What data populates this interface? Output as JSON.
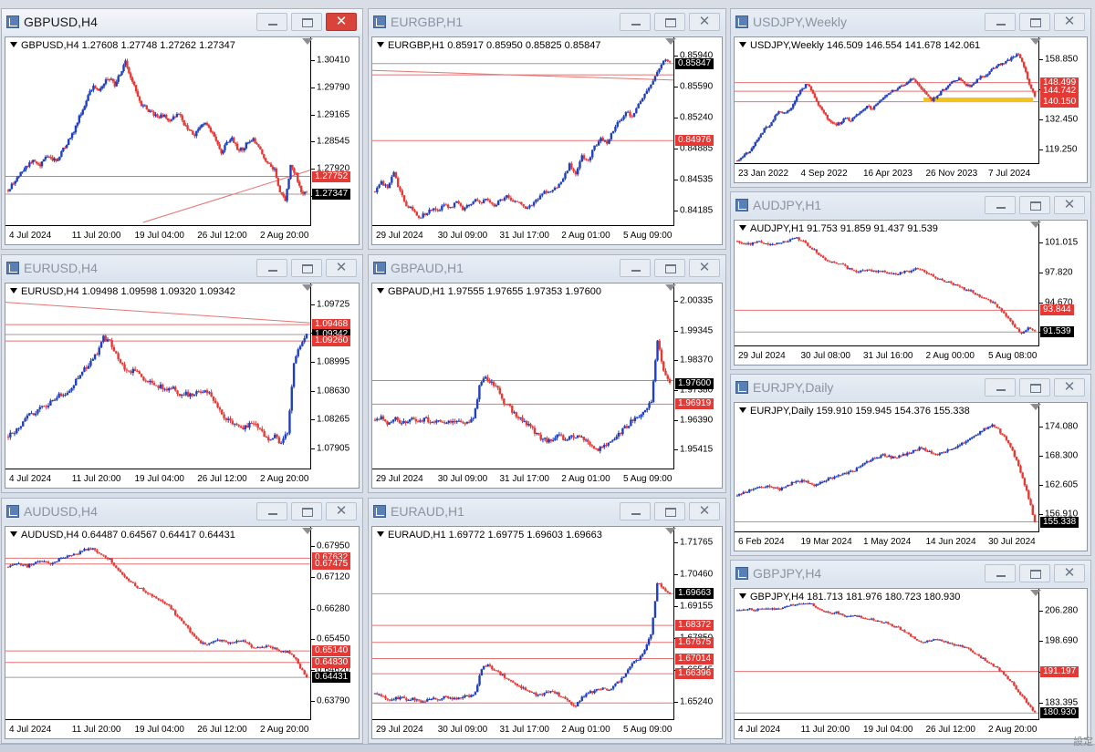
{
  "windows": [
    {
      "id": "gbpusd",
      "title": "GBPUSD,H4",
      "active": true,
      "header": "GBPUSD,H4  1.27608 1.27748 1.27262 1.27347",
      "yticks": [
        "1.30410",
        "1.29790",
        "1.29165",
        "1.28545",
        "1.27920",
        "1.27300"
      ],
      "yrange": [
        1.267,
        1.3068
      ],
      "xticks": [
        "4 Jul 2024",
        "11 Jul 20:00",
        "19 Jul 04:00",
        "26 Jul 12:00",
        "2 Aug 20:00"
      ],
      "price_tags": [
        {
          "label": "1.27752",
          "value": 1.27752,
          "color": "red"
        },
        {
          "label": "1.27347",
          "value": 1.27347,
          "color": "black"
        }
      ],
      "hlines": [
        {
          "value": 1.27752,
          "color": "#e57373"
        },
        {
          "value": 1.27347,
          "color": "#9e9e9e"
        }
      ],
      "trend": [
        [
          0.45,
          1.267
        ],
        [
          1.0,
          1.279
        ]
      ],
      "series": [
        1.2744,
        1.276,
        1.2778,
        1.279,
        1.2805,
        1.2812,
        1.28,
        1.282,
        1.2815,
        1.281,
        1.283,
        1.285,
        1.287,
        1.29,
        1.293,
        1.296,
        1.298,
        1.2975,
        1.299,
        1.3,
        1.2985,
        1.301,
        1.304,
        1.3,
        1.297,
        1.294,
        1.293,
        1.292,
        1.291,
        1.2915,
        1.2905,
        1.291,
        1.292,
        1.2895,
        1.288,
        1.287,
        1.289,
        1.29,
        1.288,
        1.286,
        1.283,
        1.285,
        1.286,
        1.284,
        1.2835,
        1.2855,
        1.286,
        1.284,
        1.282,
        1.28,
        1.279,
        1.274,
        1.272,
        1.28,
        1.278,
        1.274,
        1.2735
      ],
      "volatility": 0.0009
    },
    {
      "id": "eurgbp",
      "title": "EURGBP,H1",
      "active": false,
      "header": "EURGBP,H1  0.85917 0.85950 0.85825 0.85847",
      "yticks": [
        "0.85940",
        "0.85590",
        "0.85240",
        "0.84885",
        "0.84535",
        "0.84185"
      ],
      "yrange": [
        0.8405,
        0.8602
      ],
      "xticks": [
        "29 Jul 2024",
        "30 Jul 09:00",
        "31 Jul 17:00",
        "2 Aug 01:00",
        "5 Aug 09:00"
      ],
      "price_tags": [
        {
          "label": "0.85847",
          "value": 0.85847,
          "color": "black"
        },
        {
          "label": "0.84976",
          "value": 0.84976,
          "color": "red"
        }
      ],
      "hlines": [
        {
          "value": 0.85847,
          "color": "#9e9e9e"
        },
        {
          "value": 0.8572,
          "color": "#e57373"
        },
        {
          "value": 0.84976,
          "color": "#e57373"
        }
      ],
      "trend": [
        [
          0.0,
          0.8577
        ],
        [
          1.0,
          0.8566
        ]
      ],
      "series": [
        0.844,
        0.845,
        0.8445,
        0.846,
        0.844,
        0.8425,
        0.842,
        0.841,
        0.8415,
        0.842,
        0.8418,
        0.8425,
        0.8422,
        0.8428,
        0.842,
        0.8425,
        0.843,
        0.8428,
        0.8432,
        0.8425,
        0.843,
        0.8435,
        0.843,
        0.8428,
        0.842,
        0.8425,
        0.8432,
        0.844,
        0.8438,
        0.8445,
        0.8455,
        0.847,
        0.846,
        0.848,
        0.8475,
        0.849,
        0.85,
        0.8495,
        0.851,
        0.852,
        0.853,
        0.8525,
        0.854,
        0.855,
        0.856,
        0.8575,
        0.859,
        0.8585
      ],
      "volatility": 0.0004
    },
    {
      "id": "usdjpy",
      "title": "USDJPY,Weekly",
      "active": false,
      "header": "USDJPY,Weekly  146.509 146.554 141.678 142.061",
      "yticks": [
        "158.850",
        "145.650",
        "132.450",
        "119.250"
      ],
      "yrange": [
        114.5,
        163.5
      ],
      "xticks": [
        "23 Jan 2022",
        "4 Sep 2022",
        "16 Apr 2023",
        "26 Nov 2023",
        "7 Jul 2024"
      ],
      "price_tags": [
        {
          "label": "148.499",
          "value": 148.499,
          "color": "red"
        },
        {
          "label": "144.742",
          "value": 144.742,
          "color": "red"
        },
        {
          "label": "140.150",
          "value": 140.15,
          "color": "red"
        }
      ],
      "hlines": [
        {
          "value": 148.499,
          "color": "#e57373"
        },
        {
          "value": 144.742,
          "color": "#e57373"
        },
        {
          "value": 140.15,
          "color": "#e57373"
        }
      ],
      "highlight": {
        "from": 0.62,
        "to": 0.98,
        "value": 141.0,
        "color": "#f2c318"
      },
      "trend": null,
      "series": [
        114.5,
        116,
        118,
        121,
        124,
        128,
        130,
        134,
        136,
        135,
        138,
        142,
        146,
        148,
        144,
        139,
        135,
        132,
        130,
        131,
        133,
        132,
        134,
        136,
        138,
        137,
        140,
        142,
        144,
        145,
        147,
        148,
        150,
        149,
        146,
        143,
        141,
        143,
        145,
        147,
        149,
        150,
        148,
        147,
        149,
        151,
        152,
        154,
        156,
        157,
        158,
        160,
        161,
        155,
        148,
        142
      ],
      "volatility": 1.2
    },
    {
      "id": "eurusd",
      "title": "EURUSD,H4",
      "active": false,
      "header": "EURUSD,H4  1.09498 1.09598 1.09320 1.09342",
      "yticks": [
        "1.09725",
        "1.09365",
        "1.08995",
        "1.08630",
        "1.08265",
        "1.07905"
      ],
      "yrange": [
        1.0768,
        1.0985
      ],
      "xticks": [
        "4 Jul 2024",
        "11 Jul 20:00",
        "19 Jul 04:00",
        "26 Jul 12:00",
        "2 Aug 20:00"
      ],
      "price_tags": [
        {
          "label": "1.09468",
          "value": 1.09468,
          "color": "red"
        },
        {
          "label": "1.09342",
          "value": 1.09342,
          "color": "black"
        },
        {
          "label": "1.09260",
          "value": 1.0926,
          "color": "red"
        }
      ],
      "hlines": [
        {
          "value": 1.09468,
          "color": "#e57373"
        },
        {
          "value": 1.09342,
          "color": "#9e9e9e"
        },
        {
          "value": 1.0926,
          "color": "#e57373"
        }
      ],
      "trend": [
        [
          0.0,
          1.0975
        ],
        [
          1.0,
          1.0949
        ]
      ],
      "series": [
        1.0805,
        1.0812,
        1.082,
        1.083,
        1.0835,
        1.084,
        1.0845,
        1.085,
        1.086,
        1.0858,
        1.0865,
        1.088,
        1.089,
        1.09,
        1.091,
        1.093,
        1.0925,
        1.091,
        1.0895,
        1.0885,
        1.089,
        1.088,
        1.0875,
        1.087,
        1.0868,
        1.0862,
        1.087,
        1.0858,
        1.086,
        1.0855,
        1.0862,
        1.0865,
        1.0855,
        1.084,
        1.083,
        1.0825,
        1.082,
        1.0815,
        1.082,
        1.0818,
        1.081,
        1.08,
        1.0805,
        1.0795,
        1.081,
        1.09,
        1.092,
        1.0934
      ],
      "volatility": 0.0006
    },
    {
      "id": "gbpaud",
      "title": "GBPAUD,H1",
      "active": false,
      "header": "GBPAUD,H1  1.97555 1.97655 1.97353 1.97600",
      "yticks": [
        "2.00335",
        "1.99345",
        "1.98370",
        "1.97380",
        "1.96390",
        "1.95415"
      ],
      "yrange": [
        1.9488,
        2.0055
      ],
      "xticks": [
        "29 Jul 2024",
        "30 Jul 09:00",
        "31 Jul 17:00",
        "2 Aug 01:00",
        "5 Aug 09:00"
      ],
      "price_tags": [
        {
          "label": "1.97600",
          "value": 1.976,
          "color": "black"
        },
        {
          "label": "1.96919",
          "value": 1.96919,
          "color": "red"
        }
      ],
      "hlines": [
        {
          "value": 1.977,
          "color": "#e57373"
        },
        {
          "value": 1.96919,
          "color": "#e57373"
        }
      ],
      "trend": null,
      "series": [
        1.964,
        1.965,
        1.963,
        1.9645,
        1.9635,
        1.9625,
        1.964,
        1.963,
        1.9645,
        1.9635,
        1.964,
        1.963,
        1.9635,
        1.964,
        1.9635,
        1.963,
        1.964,
        1.975,
        1.978,
        1.976,
        1.974,
        1.97,
        1.968,
        1.965,
        1.964,
        1.962,
        1.96,
        1.958,
        1.957,
        1.958,
        1.959,
        1.9575,
        1.9585,
        1.959,
        1.958,
        1.956,
        1.954,
        1.955,
        1.956,
        1.958,
        1.96,
        1.962,
        1.964,
        1.965,
        1.967,
        1.97,
        1.99,
        1.98,
        1.976
      ],
      "volatility": 0.0015
    },
    {
      "id": "audjpy",
      "title": "AUDJPY,H1",
      "active": false,
      "header": "AUDJPY,H1  91.753 91.859 91.437 91.539",
      "yticks": [
        "101.015",
        "97.820",
        "94.670",
        "91.520"
      ],
      "yrange": [
        90.4,
        102.2
      ],
      "xticks": [
        "29 Jul 2024",
        "30 Jul 08:00",
        "31 Jul 16:00",
        "2 Aug 00:00",
        "5 Aug 08:00"
      ],
      "price_tags": [
        {
          "label": "93.844",
          "value": 93.844,
          "color": "red"
        },
        {
          "label": "91.539",
          "value": 91.539,
          "color": "black"
        }
      ],
      "hlines": [
        {
          "value": 93.844,
          "color": "#e57373"
        },
        {
          "value": 91.539,
          "color": "#9e9e9e"
        }
      ],
      "trend": null,
      "series": [
        101.2,
        101.0,
        100.9,
        101.1,
        101.0,
        100.8,
        100.9,
        101.1,
        101.3,
        101.5,
        101.1,
        100.6,
        100.0,
        99.4,
        99.0,
        98.8,
        98.6,
        98.2,
        97.9,
        98.0,
        98.1,
        97.9,
        98.0,
        97.8,
        97.7,
        97.9,
        98.0,
        98.2,
        98.1,
        97.7,
        97.2,
        97.0,
        96.8,
        96.5,
        96.2,
        96.0,
        95.6,
        95.2,
        94.9,
        94.5,
        93.8,
        93.0,
        92.0,
        91.5,
        91.9,
        91.6
      ],
      "volatility": 0.25
    },
    {
      "id": "audusd",
      "title": "AUDUSD,H4",
      "active": false,
      "header": "AUDUSD,H4  0.64487 0.64567 0.64417 0.64431",
      "yticks": [
        "0.67950",
        "0.67120",
        "0.66280",
        "0.65450",
        "0.64620",
        "0.63790"
      ],
      "yrange": [
        0.6338,
        0.6818
      ],
      "xticks": [
        "4 Jul 2024",
        "11 Jul 20:00",
        "19 Jul 04:00",
        "26 Jul 12:00",
        "2 Aug 20:00"
      ],
      "price_tags": [
        {
          "label": "0.67632",
          "value": 0.67632,
          "color": "red"
        },
        {
          "label": "0.67475",
          "value": 0.67475,
          "color": "red"
        },
        {
          "label": "0.65140",
          "value": 0.6514,
          "color": "red"
        },
        {
          "label": "0.64830",
          "value": 0.6483,
          "color": "red"
        },
        {
          "label": "0.64431",
          "value": 0.64431,
          "color": "black"
        }
      ],
      "hlines": [
        {
          "value": 0.67632,
          "color": "#e57373"
        },
        {
          "value": 0.67475,
          "color": "#e57373"
        },
        {
          "value": 0.6514,
          "color": "#e57373"
        },
        {
          "value": 0.6483,
          "color": "#e57373"
        },
        {
          "value": 0.64431,
          "color": "#9e9e9e"
        }
      ],
      "trend": null,
      "series": [
        0.674,
        0.6745,
        0.6748,
        0.6742,
        0.675,
        0.6755,
        0.6752,
        0.6748,
        0.676,
        0.6765,
        0.677,
        0.6775,
        0.6785,
        0.679,
        0.678,
        0.6772,
        0.676,
        0.674,
        0.672,
        0.67,
        0.669,
        0.668,
        0.667,
        0.666,
        0.665,
        0.664,
        0.662,
        0.66,
        0.658,
        0.656,
        0.654,
        0.653,
        0.654,
        0.6545,
        0.654,
        0.6535,
        0.654,
        0.6542,
        0.653,
        0.652,
        0.6525,
        0.653,
        0.652,
        0.651,
        0.6515,
        0.65,
        0.647,
        0.6443
      ],
      "volatility": 0.0007
    },
    {
      "id": "euraud",
      "title": "EURAUD,H1",
      "active": false,
      "header": "EURAUD,H1  1.69772 1.69775 1.69603 1.69663",
      "yticks": [
        "1.71765",
        "1.70460",
        "1.69155",
        "1.67850",
        "1.66545",
        "1.65240"
      ],
      "yrange": [
        1.6465,
        1.7195
      ],
      "xticks": [
        "29 Jul 2024",
        "30 Jul 09:00",
        "31 Jul 17:00",
        "2 Aug 01:00",
        "5 Aug 09:00"
      ],
      "price_tags": [
        {
          "label": "1.69663",
          "value": 1.69663,
          "color": "black"
        },
        {
          "label": "1.68372",
          "value": 1.68372,
          "color": "red"
        },
        {
          "label": "1.67675",
          "value": 1.67675,
          "color": "red"
        },
        {
          "label": "1.67014",
          "value": 1.67014,
          "color": "red"
        },
        {
          "label": "1.66396",
          "value": 1.66396,
          "color": "red"
        }
      ],
      "hlines": [
        {
          "value": 1.69663,
          "color": "#9e9e9e"
        },
        {
          "value": 1.68372,
          "color": "#e57373"
        },
        {
          "value": 1.67675,
          "color": "#e57373"
        },
        {
          "value": 1.67014,
          "color": "#e57373"
        },
        {
          "value": 1.66396,
          "color": "#e57373"
        },
        {
          "value": 1.652,
          "color": "#e57373"
        }
      ],
      "trend": null,
      "series": [
        1.656,
        1.655,
        1.654,
        1.6535,
        1.6545,
        1.653,
        1.654,
        1.6525,
        1.653,
        1.654,
        1.6535,
        1.6545,
        1.654,
        1.6535,
        1.6545,
        1.655,
        1.656,
        1.666,
        1.668,
        1.665,
        1.664,
        1.662,
        1.66,
        1.659,
        1.657,
        1.656,
        1.655,
        1.656,
        1.657,
        1.656,
        1.654,
        1.652,
        1.651,
        1.654,
        1.656,
        1.657,
        1.658,
        1.657,
        1.659,
        1.661,
        1.664,
        1.668,
        1.67,
        1.674,
        1.68,
        1.701,
        1.699,
        1.6966
      ],
      "volatility": 0.0012
    },
    {
      "id": "eurjpy",
      "title": "EURJPY,Daily",
      "active": false,
      "header": "EURJPY,Daily  159.910 159.945 154.376 155.338",
      "yticks": [
        "174.080",
        "168.300",
        "162.605",
        "156.910"
      ],
      "yrange": [
        154.0,
        176.6
      ],
      "xticks": [
        "6 Feb 2024",
        "19 Mar 2024",
        "1 May 2024",
        "14 Jun 2024",
        "30 Jul 2024"
      ],
      "price_tags": [
        {
          "label": "155.338",
          "value": 155.338,
          "color": "black"
        }
      ],
      "hlines": [
        {
          "value": 155.338,
          "color": "#9e9e9e"
        }
      ],
      "trend": null,
      "series": [
        160.5,
        161.0,
        161.5,
        161.8,
        162.2,
        162.5,
        162.0,
        161.8,
        162.4,
        163.0,
        163.2,
        163.5,
        163.0,
        162.5,
        163.2,
        163.8,
        164.0,
        164.5,
        165.0,
        165.2,
        166.0,
        166.8,
        167.5,
        168.0,
        168.5,
        168.2,
        167.8,
        168.4,
        168.8,
        169.2,
        169.8,
        169.5,
        168.9,
        168.5,
        169.0,
        169.6,
        170.0,
        170.8,
        171.5,
        172.3,
        173.0,
        173.8,
        174.5,
        173.5,
        172.0,
        170.0,
        167.5,
        164.0,
        160.0,
        155.3
      ],
      "volatility": 0.5
    },
    {
      "id": "gbpjpy",
      "title": "GBPJPY,H4",
      "active": false,
      "header": "GBPJPY,H4  181.713 181.976 180.723 180.930",
      "yticks": [
        "206.280",
        "198.690",
        "191.100",
        "183.395"
      ],
      "yrange": [
        180.1,
        208.9
      ],
      "xticks": [
        "4 Jul 2024",
        "11 Jul 20:00",
        "19 Jul 04:00",
        "26 Jul 12:00",
        "2 Aug 20:00"
      ],
      "price_tags": [
        {
          "label": "191.197",
          "value": 191.197,
          "color": "red"
        },
        {
          "label": "180.930",
          "value": 180.93,
          "color": "black"
        }
      ],
      "hlines": [
        {
          "value": 191.197,
          "color": "#e57373"
        },
        {
          "value": 180.93,
          "color": "#9e9e9e"
        }
      ],
      "trend": null,
      "series": [
        206.3,
        206.5,
        206.6,
        206.4,
        206.7,
        206.8,
        206.5,
        206.9,
        207.3,
        207.6,
        207.9,
        208.0,
        207.8,
        206.8,
        206.0,
        205.5,
        205.8,
        205.0,
        204.7,
        205.0,
        204.5,
        204.2,
        204.0,
        203.5,
        203.2,
        202.5,
        202.0,
        201.0,
        200.0,
        199.0,
        198.5,
        198.8,
        199.2,
        198.9,
        198.2,
        197.8,
        197.5,
        197.0,
        196.0,
        195.0,
        194.0,
        193.0,
        192.0,
        190.5,
        189.0,
        187.0,
        185.0,
        183.0,
        181.0
      ],
      "volatility": 0.45
    }
  ],
  "corner_text": "設定"
}
